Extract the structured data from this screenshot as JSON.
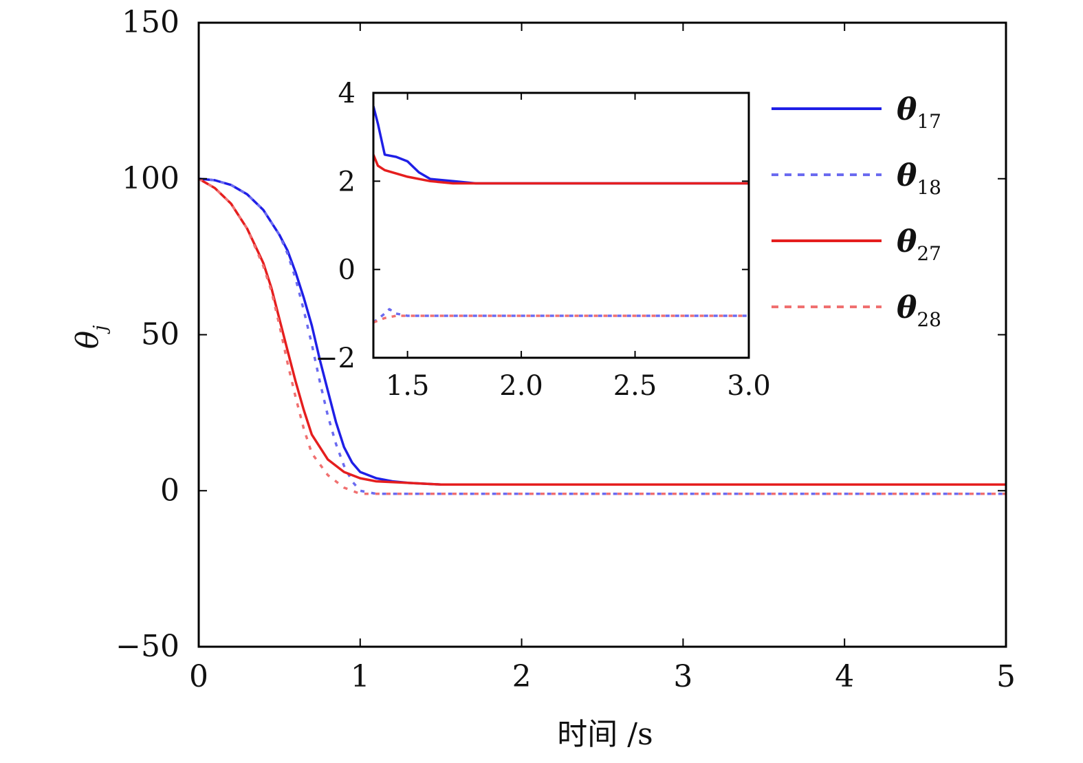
{
  "chart_data": [
    {
      "type": "line",
      "xlabel": "时间 /s",
      "ylabel": "θ",
      "ylabel_sub": "j",
      "xlim": [
        0,
        5
      ],
      "ylim": [
        -50,
        150
      ],
      "xticks": [
        0,
        1,
        2,
        3,
        4,
        5
      ],
      "xtick_labels": [
        "0",
        "1",
        "2",
        "3",
        "4",
        "5"
      ],
      "yticks": [
        -50,
        0,
        50,
        100,
        150
      ],
      "ytick_labels": [
        "−50",
        "0",
        "50",
        "100",
        "150"
      ],
      "grid": false,
      "legend": "right",
      "series": [
        {
          "name": "θ17",
          "symbol": "θ",
          "sub": "17",
          "color": "#1f1fe6",
          "dash": "solid",
          "points": [
            [
              0,
              100
            ],
            [
              0.1,
              99.5
            ],
            [
              0.2,
              98
            ],
            [
              0.3,
              95
            ],
            [
              0.4,
              90
            ],
            [
              0.5,
              82
            ],
            [
              0.55,
              77
            ],
            [
              0.6,
              70
            ],
            [
              0.65,
              62
            ],
            [
              0.7,
              53
            ],
            [
              0.75,
              42
            ],
            [
              0.8,
              32
            ],
            [
              0.85,
              22
            ],
            [
              0.9,
              14
            ],
            [
              0.95,
              9
            ],
            [
              1.0,
              6
            ],
            [
              1.1,
              4
            ],
            [
              1.2,
              3
            ],
            [
              1.3,
              2.5
            ],
            [
              1.5,
              2
            ],
            [
              2,
              2
            ],
            [
              3,
              2
            ],
            [
              4,
              2
            ],
            [
              5,
              2
            ]
          ]
        },
        {
          "name": "θ18",
          "symbol": "θ",
          "sub": "18",
          "color": "#6b6bf0",
          "dash": "dotted",
          "points": [
            [
              0,
              100
            ],
            [
              0.1,
              99.5
            ],
            [
              0.2,
              98
            ],
            [
              0.3,
              95
            ],
            [
              0.4,
              90
            ],
            [
              0.5,
              82
            ],
            [
              0.55,
              76
            ],
            [
              0.6,
              68
            ],
            [
              0.65,
              58
            ],
            [
              0.7,
              47
            ],
            [
              0.75,
              35
            ],
            [
              0.8,
              24
            ],
            [
              0.85,
              15
            ],
            [
              0.9,
              8
            ],
            [
              0.95,
              3
            ],
            [
              1.0,
              0
            ],
            [
              1.1,
              -1
            ],
            [
              1.5,
              -1
            ],
            [
              2,
              -1
            ],
            [
              3,
              -1
            ],
            [
              4,
              -1
            ],
            [
              5,
              -1
            ]
          ]
        },
        {
          "name": "θ27",
          "symbol": "θ",
          "sub": "27",
          "color": "#e51e1e",
          "dash": "solid",
          "points": [
            [
              0,
              100
            ],
            [
              0.1,
              97
            ],
            [
              0.2,
              92
            ],
            [
              0.3,
              84
            ],
            [
              0.4,
              73
            ],
            [
              0.45,
              65
            ],
            [
              0.5,
              55
            ],
            [
              0.55,
              45
            ],
            [
              0.6,
              35
            ],
            [
              0.65,
              26
            ],
            [
              0.7,
              18
            ],
            [
              0.8,
              10
            ],
            [
              0.9,
              6
            ],
            [
              1.0,
              4
            ],
            [
              1.1,
              3
            ],
            [
              1.3,
              2.5
            ],
            [
              1.5,
              2
            ],
            [
              2,
              2
            ],
            [
              3,
              2
            ],
            [
              4,
              2
            ],
            [
              5,
              2
            ]
          ]
        },
        {
          "name": "θ28",
          "symbol": "θ",
          "sub": "28",
          "color": "#f07070",
          "dash": "dotted",
          "points": [
            [
              0,
              100
            ],
            [
              0.1,
              97
            ],
            [
              0.2,
              92
            ],
            [
              0.3,
              84
            ],
            [
              0.4,
              72
            ],
            [
              0.45,
              64
            ],
            [
              0.5,
              53
            ],
            [
              0.55,
              41
            ],
            [
              0.6,
              30
            ],
            [
              0.65,
              20
            ],
            [
              0.7,
              12
            ],
            [
              0.8,
              5
            ],
            [
              0.9,
              1
            ],
            [
              1.0,
              -1
            ],
            [
              1.2,
              -1
            ],
            [
              1.5,
              -1
            ],
            [
              2,
              -1
            ],
            [
              3,
              -1
            ],
            [
              4,
              -1
            ],
            [
              5,
              -1
            ]
          ]
        }
      ]
    },
    {
      "type": "line",
      "inset": true,
      "xlim": [
        1.35,
        3.0
      ],
      "ylim": [
        -2,
        4
      ],
      "xticks": [
        1.5,
        2.0,
        2.5,
        3.0
      ],
      "xtick_labels": [
        "1.5",
        "2.0",
        "2.5",
        "3.0"
      ],
      "yticks": [
        -2,
        0,
        2,
        4
      ],
      "ytick_labels": [
        "−2",
        "0",
        "2",
        "4"
      ],
      "grid": false,
      "series": [
        {
          "name": "θ17",
          "color": "#1f1fe6",
          "dash": "solid",
          "points": [
            [
              1.35,
              3.7
            ],
            [
              1.37,
              3.3
            ],
            [
              1.4,
              2.6
            ],
            [
              1.45,
              2.55
            ],
            [
              1.5,
              2.45
            ],
            [
              1.55,
              2.2
            ],
            [
              1.6,
              2.05
            ],
            [
              1.7,
              2.0
            ],
            [
              1.8,
              1.95
            ],
            [
              2,
              1.95
            ],
            [
              3,
              1.95
            ]
          ]
        },
        {
          "name": "θ18",
          "color": "#6b6bf0",
          "dash": "dotted",
          "points": [
            [
              1.35,
              -1.2
            ],
            [
              1.4,
              -1.0
            ],
            [
              1.42,
              -0.9
            ],
            [
              1.45,
              -1.0
            ],
            [
              1.5,
              -1.05
            ],
            [
              2,
              -1.05
            ],
            [
              3,
              -1.05
            ]
          ]
        },
        {
          "name": "θ27",
          "color": "#e51e1e",
          "dash": "solid",
          "points": [
            [
              1.35,
              2.6
            ],
            [
              1.37,
              2.35
            ],
            [
              1.4,
              2.25
            ],
            [
              1.5,
              2.1
            ],
            [
              1.6,
              2.0
            ],
            [
              1.7,
              1.95
            ],
            [
              2,
              1.95
            ],
            [
              3,
              1.95
            ]
          ]
        },
        {
          "name": "θ28",
          "color": "#f07070",
          "dash": "dotted",
          "points": [
            [
              1.35,
              -1.2
            ],
            [
              1.4,
              -1.1
            ],
            [
              1.45,
              -1.05
            ],
            [
              1.5,
              -1.05
            ],
            [
              2,
              -1.05
            ],
            [
              3,
              -1.05
            ]
          ]
        }
      ]
    }
  ]
}
